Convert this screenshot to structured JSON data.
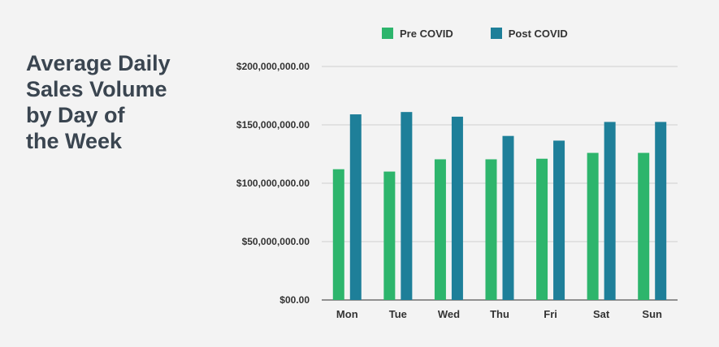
{
  "title_lines": [
    "Average Daily",
    "Sales Volume",
    "by Day of",
    "the Week"
  ],
  "colors": {
    "pre": "#2db56c",
    "post": "#1e7f99",
    "grid": "#cfcfcf",
    "axis": "#555555"
  },
  "chart_data": {
    "type": "bar",
    "categories": [
      "Mon",
      "Tue",
      "Wed",
      "Thu",
      "Fri",
      "Sat",
      "Sun"
    ],
    "series": [
      {
        "name": "Pre COVID",
        "values": [
          112000000,
          110000000,
          120500000,
          120500000,
          121000000,
          126000000,
          126000000
        ]
      },
      {
        "name": "Post COVID",
        "values": [
          159000000,
          161000000,
          157000000,
          140500000,
          136500000,
          152500000,
          152500000
        ]
      }
    ],
    "yticks": [
      {
        "value": 0,
        "label": "$00.00"
      },
      {
        "value": 50000000,
        "label": "$50,000,000.00"
      },
      {
        "value": 100000000,
        "label": "$100,000,000.00"
      },
      {
        "value": 150000000,
        "label": "$150,000,000.00"
      },
      {
        "value": 200000000,
        "label": "$200,000,000.00"
      }
    ],
    "ylim": [
      0,
      200000000
    ],
    "grid": true,
    "legend_position": "top"
  }
}
